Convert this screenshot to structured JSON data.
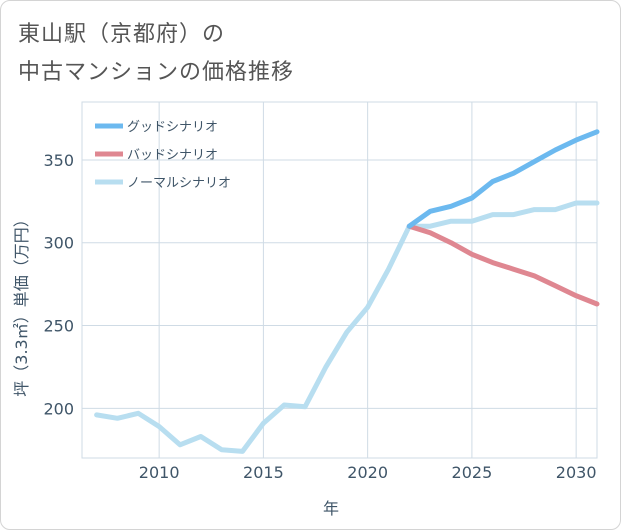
{
  "title_line1": "東山駅（京都府）の",
  "title_line2": "中古マンションの価格推移",
  "chart_data": {
    "type": "line",
    "title": "東山駅（京都府）の中古マンションの価格推移",
    "xlabel": "年",
    "ylabel": "坪（3.3㎡）単価（万円）",
    "xlim": [
      2006.3,
      2031
    ],
    "ylim": [
      170,
      385
    ],
    "x_ticks": [
      2010,
      2015,
      2020,
      2025,
      2030
    ],
    "y_ticks": [
      200,
      250,
      300,
      350
    ],
    "grid": true,
    "legend_position": "top-left",
    "series": [
      {
        "name": "グッドシナリオ",
        "color": "#6cb9ef",
        "x": [
          2022,
          2023,
          2024,
          2025,
          2026,
          2027,
          2028,
          2029,
          2030,
          2031
        ],
        "values": [
          310,
          319,
          322,
          327,
          337,
          342,
          349,
          356,
          362,
          367
        ]
      },
      {
        "name": "バッドシナリオ",
        "color": "#df8791",
        "x": [
          2022,
          2023,
          2024,
          2025,
          2026,
          2027,
          2028,
          2029,
          2030,
          2031
        ],
        "values": [
          310,
          306,
          300,
          293,
          288,
          284,
          280,
          274,
          268,
          263
        ]
      },
      {
        "name": "ノーマルシナリオ",
        "color": "#b8def0",
        "x": [
          2007,
          2008,
          2009,
          2010,
          2011,
          2012,
          2013,
          2014,
          2015,
          2016,
          2017,
          2018,
          2019,
          2020,
          2021,
          2022,
          2023,
          2024,
          2025,
          2026,
          2027,
          2028,
          2029,
          2030,
          2031
        ],
        "values": [
          196,
          194,
          197,
          189,
          178,
          183,
          175,
          174,
          191,
          202,
          201,
          225,
          246,
          261,
          284,
          310,
          310,
          313,
          313,
          317,
          317,
          320,
          320,
          324,
          324
        ]
      }
    ]
  }
}
